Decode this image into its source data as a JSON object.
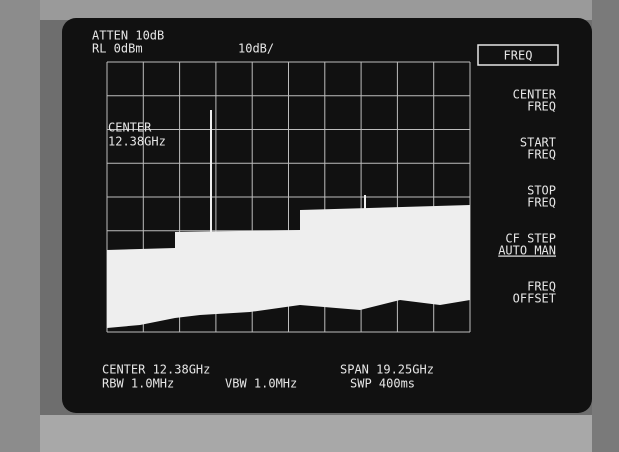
{
  "header": {
    "atten": "ATTEN 10dB",
    "ref_level": "RL 0dBm",
    "scale": "10dB/"
  },
  "marker_annotation": {
    "label": "CENTER",
    "value": "12.38GHz"
  },
  "softkeys": {
    "title": "FREQ",
    "keys": [
      [
        "CENTER",
        "FREQ"
      ],
      [
        "START",
        "FREQ"
      ],
      [
        "STOP",
        "FREQ"
      ],
      [
        "CF STEP",
        "AUTO MAN"
      ],
      [
        "FREQ",
        "OFFSET"
      ]
    ]
  },
  "footer": {
    "center": "CENTER 12.38GHz",
    "span": "SPAN 19.25GHz",
    "rbw": "RBW 1.0MHz",
    "vbw": "VBW 1.0MHz",
    "sweep": "SWP 400ms"
  }
}
